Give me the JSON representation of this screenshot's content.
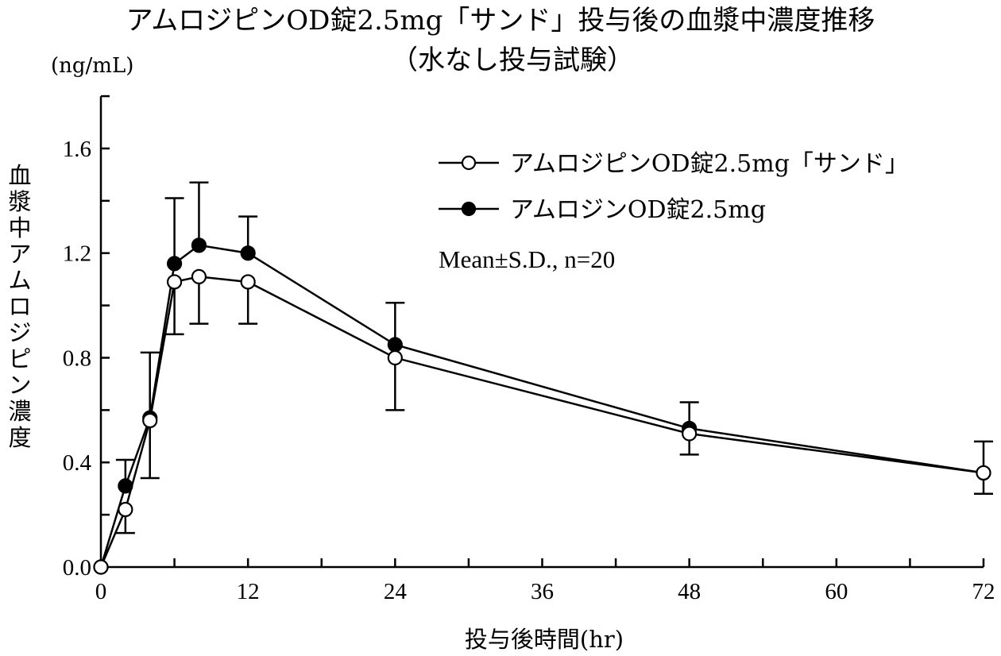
{
  "chart_data": {
    "type": "line",
    "title": "アムロジピンOD錠2.5mg「サンド」投与後の血漿中濃度推移",
    "subtitle": "（水なし投与試験）",
    "unit_label": "(ng/mL)",
    "ylabel": "血漿中アムロジピン濃度",
    "xlabel": "投与後時間(hr)",
    "xlim": [
      0,
      72
    ],
    "ylim": [
      0,
      1.8
    ],
    "xticks": [
      0,
      12,
      24,
      36,
      48,
      60,
      72
    ],
    "xtick_labels": [
      "0",
      "12",
      "24",
      "36",
      "48",
      "60",
      "72"
    ],
    "x_minor_step": 6,
    "yticks": [
      0.0,
      0.4,
      0.8,
      1.2,
      1.6
    ],
    "ytick_labels": [
      "0.0",
      "0.4",
      "0.8",
      "1.2",
      "1.6"
    ],
    "y_minor_step": 0.2,
    "grid": false,
    "legend_placement": "top-right",
    "annotation": "Mean±S.D., n=20",
    "x": [
      0,
      2,
      4,
      6,
      8,
      12,
      24,
      48,
      72
    ],
    "series": [
      {
        "name": "アムロジピンOD錠2.5mg「サンド」",
        "marker": "open-circle",
        "error_direction": "down",
        "values": [
          0,
          0.22,
          0.56,
          1.09,
          1.11,
          1.09,
          0.8,
          0.51,
          0.36
        ],
        "sd": [
          0,
          0.09,
          0.22,
          0.2,
          0.18,
          0.16,
          0.2,
          0.08,
          0.08
        ]
      },
      {
        "name": "アムロジンOD錠2.5mg",
        "marker": "filled-circle",
        "error_direction": "up",
        "values": [
          0,
          0.31,
          0.57,
          1.16,
          1.23,
          1.2,
          0.85,
          0.53,
          0.36
        ],
        "sd": [
          0,
          0.1,
          0.25,
          0.25,
          0.24,
          0.14,
          0.16,
          0.1,
          0.12
        ]
      }
    ]
  }
}
